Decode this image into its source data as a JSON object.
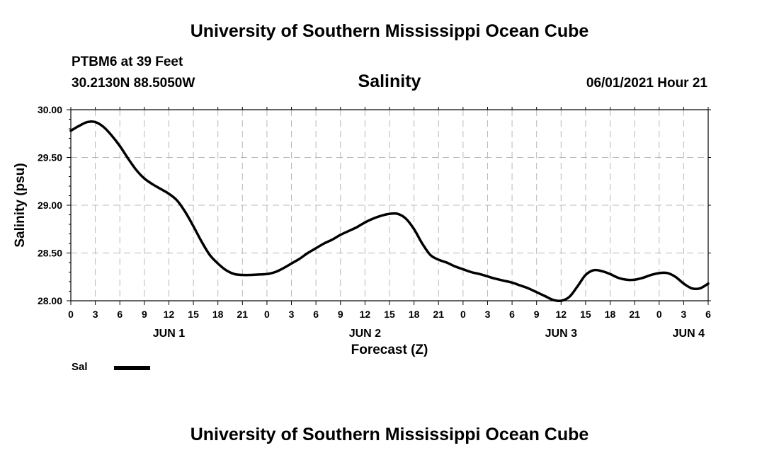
{
  "title": "University of Southern Mississippi Ocean Cube",
  "footer_title": "University of Southern Mississippi Ocean Cube",
  "station": "PTBM6 at 39 Feet",
  "coordinates": "30.2130N  88.5050W",
  "subtitle": "Salinity",
  "datetime": "06/01/2021 Hour 21",
  "chart_data": {
    "type": "line",
    "title": "Salinity",
    "xlabel": "Forecast (Z)",
    "ylabel": "Salinity (psu)",
    "ylim": [
      28.0,
      30.0
    ],
    "yticks": [
      "28.00",
      "28.50",
      "29.00",
      "29.50",
      "30.00"
    ],
    "xlim": [
      0,
      78
    ],
    "x_tick_labels": [
      "0",
      "3",
      "6",
      "9",
      "12",
      "15",
      "18",
      "21",
      "0",
      "3",
      "6",
      "9",
      "12",
      "15",
      "18",
      "21",
      "0",
      "3",
      "6",
      "9",
      "12",
      "15",
      "18",
      "21",
      "0",
      "3",
      "6"
    ],
    "day_labels": [
      {
        "label": "JUN 1",
        "x": 12
      },
      {
        "label": "JUN 2",
        "x": 36
      },
      {
        "label": "JUN 3",
        "x": 60
      },
      {
        "label": "JUN 4",
        "x": 75.6
      }
    ],
    "grid": true,
    "line_color": "#000000",
    "series": [
      {
        "name": "Sal",
        "x": [
          0,
          1,
          2,
          3,
          4,
          5,
          6,
          7,
          8,
          9,
          10,
          11,
          12,
          13,
          14,
          15,
          16,
          17,
          18,
          19,
          20,
          21,
          22,
          23,
          24,
          25,
          26,
          27,
          28,
          29,
          30,
          31,
          32,
          33,
          34,
          35,
          36,
          37,
          38,
          39,
          40,
          41,
          42,
          43,
          44,
          45,
          46,
          47,
          48,
          49,
          50,
          51,
          52,
          53,
          54,
          55,
          56,
          57,
          58,
          59,
          60,
          61,
          62,
          63,
          64,
          65,
          66,
          67,
          68,
          69,
          70,
          71,
          72,
          73,
          74,
          75,
          76,
          77,
          78
        ],
        "values": [
          29.78,
          29.83,
          29.87,
          29.87,
          29.82,
          29.73,
          29.62,
          29.49,
          29.37,
          29.28,
          29.22,
          29.17,
          29.12,
          29.05,
          28.93,
          28.78,
          28.62,
          28.48,
          28.39,
          28.32,
          28.28,
          28.27,
          28.27,
          28.275,
          28.28,
          28.3,
          28.34,
          28.39,
          28.44,
          28.5,
          28.55,
          28.6,
          28.64,
          28.69,
          28.73,
          28.77,
          28.82,
          28.86,
          28.89,
          28.91,
          28.91,
          28.86,
          28.75,
          28.6,
          28.48,
          28.43,
          28.4,
          28.36,
          28.33,
          28.3,
          28.28,
          28.255,
          28.23,
          28.21,
          28.19,
          28.16,
          28.13,
          28.09,
          28.05,
          28.01,
          28.0,
          28.04,
          28.15,
          28.27,
          28.32,
          28.31,
          28.28,
          28.24,
          28.22,
          28.22,
          28.24,
          28.27,
          28.29,
          28.29,
          28.25,
          28.18,
          28.13,
          28.13,
          28.18
        ]
      }
    ]
  },
  "legend": {
    "label": "Sal"
  }
}
